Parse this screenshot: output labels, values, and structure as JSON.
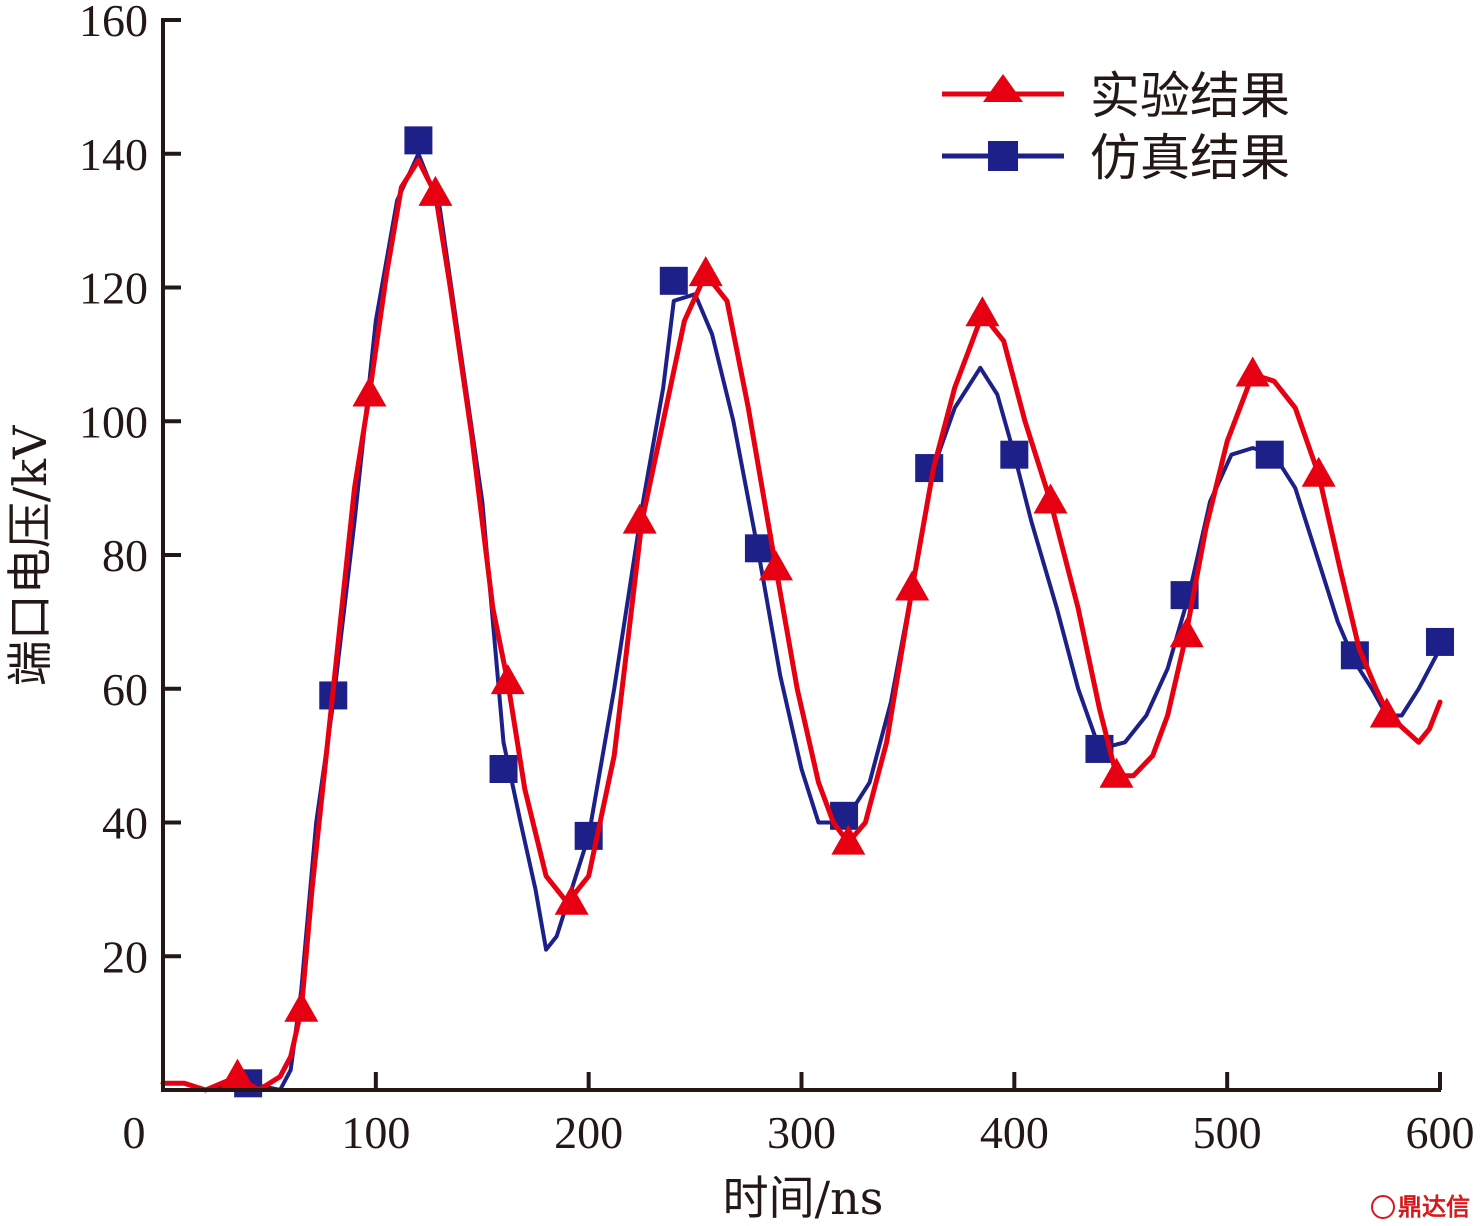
{
  "chart_data": {
    "type": "line",
    "title": "",
    "xlabel": "时间/ns",
    "ylabel": "端口电压/kV",
    "xlim": [
      0,
      600
    ],
    "ylim": [
      0,
      160
    ],
    "x_origin_label": "0",
    "xticks": [
      100,
      200,
      300,
      400,
      500,
      600
    ],
    "xtick_labels": [
      "100",
      "200",
      "300",
      "400",
      "500",
      "600"
    ],
    "yticks": [
      20,
      40,
      60,
      80,
      100,
      120,
      140,
      160
    ],
    "ytick_labels": [
      "20",
      "40",
      "60",
      "80",
      "100",
      "120",
      "140",
      "160"
    ],
    "legend_position": "top-right",
    "grid": false,
    "series": [
      {
        "name": "实验结果",
        "color": "#e60012",
        "marker": "triangle",
        "x": [
          0,
          10,
          20,
          35,
          45,
          55,
          60,
          65,
          70,
          80,
          90,
          97,
          105,
          112,
          120,
          128,
          135,
          145,
          155,
          162,
          170,
          180,
          190,
          200,
          212,
          225,
          235,
          245,
          255,
          265,
          275,
          288,
          298,
          308,
          315,
          322,
          330,
          340,
          352,
          362,
          372,
          385,
          395,
          405,
          417,
          430,
          440,
          448,
          456,
          465,
          472,
          480,
          490,
          500,
          512,
          522,
          532,
          543,
          553,
          562,
          570,
          576,
          583,
          590,
          595,
          600
        ],
        "y": [
          1,
          1,
          0,
          2,
          0,
          2,
          5,
          12,
          30,
          60,
          90,
          104,
          122,
          135,
          139,
          134,
          120,
          98,
          72,
          61,
          45,
          32,
          28,
          32,
          50,
          85,
          100,
          115,
          122,
          118,
          102,
          78,
          60,
          46,
          40,
          37,
          40,
          52,
          75,
          93,
          105,
          116,
          112,
          100,
          88,
          72,
          57,
          47,
          47,
          50,
          56,
          67,
          84,
          97,
          107,
          106,
          102,
          92,
          78,
          66,
          60,
          56,
          54,
          52,
          54,
          58
        ],
        "marker_x": [
          35,
          65,
          97,
          128,
          162,
          192,
          224,
          255,
          288,
          322,
          352,
          385,
          417,
          448,
          481,
          512,
          543,
          575
        ],
        "marker_y": [
          2,
          12,
          104,
          134,
          61,
          28,
          85,
          122,
          78,
          37,
          75,
          116,
          88,
          47,
          68,
          107,
          92,
          56
        ]
      },
      {
        "name": "仿真结果",
        "color": "#1d2088",
        "marker": "square",
        "x": [
          0,
          20,
          40,
          55,
          60,
          65,
          72,
          80,
          90,
          100,
          110,
          120,
          130,
          140,
          150,
          160,
          168,
          175,
          180,
          185,
          192,
          200,
          212,
          225,
          235,
          240,
          250,
          258,
          268,
          280,
          290,
          300,
          308,
          314,
          322,
          332,
          342,
          352,
          362,
          372,
          384,
          392,
          400,
          408,
          420,
          430,
          440,
          452,
          462,
          472,
          482,
          492,
          502,
          512,
          522,
          532,
          542,
          552,
          560,
          568,
          575,
          582,
          590,
          600
        ],
        "y": [
          0,
          0,
          1,
          0,
          3,
          15,
          40,
          58,
          85,
          115,
          133,
          140,
          132,
          110,
          88,
          52,
          40,
          30,
          21,
          23,
          30,
          38,
          60,
          87,
          105,
          118,
          119,
          113,
          100,
          80,
          62,
          48,
          40,
          40,
          41,
          46,
          58,
          75,
          93,
          102,
          108,
          104,
          95,
          85,
          72,
          60,
          51,
          52,
          56,
          63,
          74,
          88,
          95,
          96,
          95,
          90,
          80,
          70,
          64,
          60,
          56,
          56,
          60,
          66
        ],
        "marker_x": [
          40,
          80,
          120,
          160,
          200,
          240,
          280,
          320,
          360,
          400,
          440,
          480,
          520,
          560,
          600
        ],
        "marker_y": [
          1,
          59,
          142,
          48,
          38,
          121,
          81,
          41,
          93,
          95,
          51,
          74,
          95,
          65,
          67
        ]
      }
    ]
  },
  "watermark": {
    "text": "鼎达信"
  }
}
